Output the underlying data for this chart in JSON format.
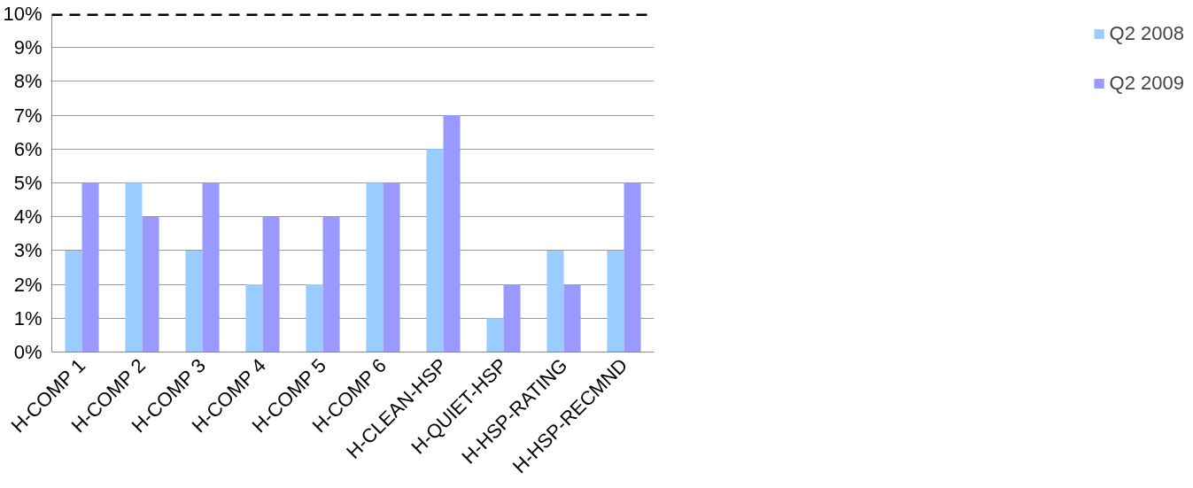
{
  "chart_data": {
    "type": "bar",
    "categories": [
      "H-COMP 1",
      "H-COMP 2",
      "H-COMP 3",
      "H-COMP 4",
      "H-COMP 5",
      "H-COMP 6",
      "H-CLEAN-HSP",
      "H-QUIET-HSP",
      "H-HSP-RATING",
      "H-HSP-RECMND"
    ],
    "series": [
      {
        "name": "Q2 2008",
        "color": "#99ccff",
        "values": [
          3,
          5,
          3,
          2,
          2,
          5,
          6,
          1,
          3,
          3
        ]
      },
      {
        "name": "Q2 2009",
        "color": "#9999ff",
        "values": [
          5,
          4,
          5,
          4,
          4,
          5,
          7,
          2,
          2,
          5
        ]
      }
    ],
    "ylim": [
      0,
      10
    ],
    "yticks": [
      {
        "value": 0,
        "label": "0%"
      },
      {
        "value": 1,
        "label": "1%"
      },
      {
        "value": 2,
        "label": "2%"
      },
      {
        "value": 3,
        "label": "3%"
      },
      {
        "value": 4,
        "label": "4%"
      },
      {
        "value": 5,
        "label": "5%"
      },
      {
        "value": 6,
        "label": "6%"
      },
      {
        "value": 7,
        "label": "7%"
      },
      {
        "value": 8,
        "label": "8%"
      },
      {
        "value": 9,
        "label": "9%"
      },
      {
        "value": 10,
        "label": "10%"
      }
    ],
    "ref_lines": [
      {
        "axis": "y",
        "value": 10,
        "color": "#000000",
        "line_style": "dashed"
      }
    ],
    "grid": "y",
    "legend": "right"
  }
}
